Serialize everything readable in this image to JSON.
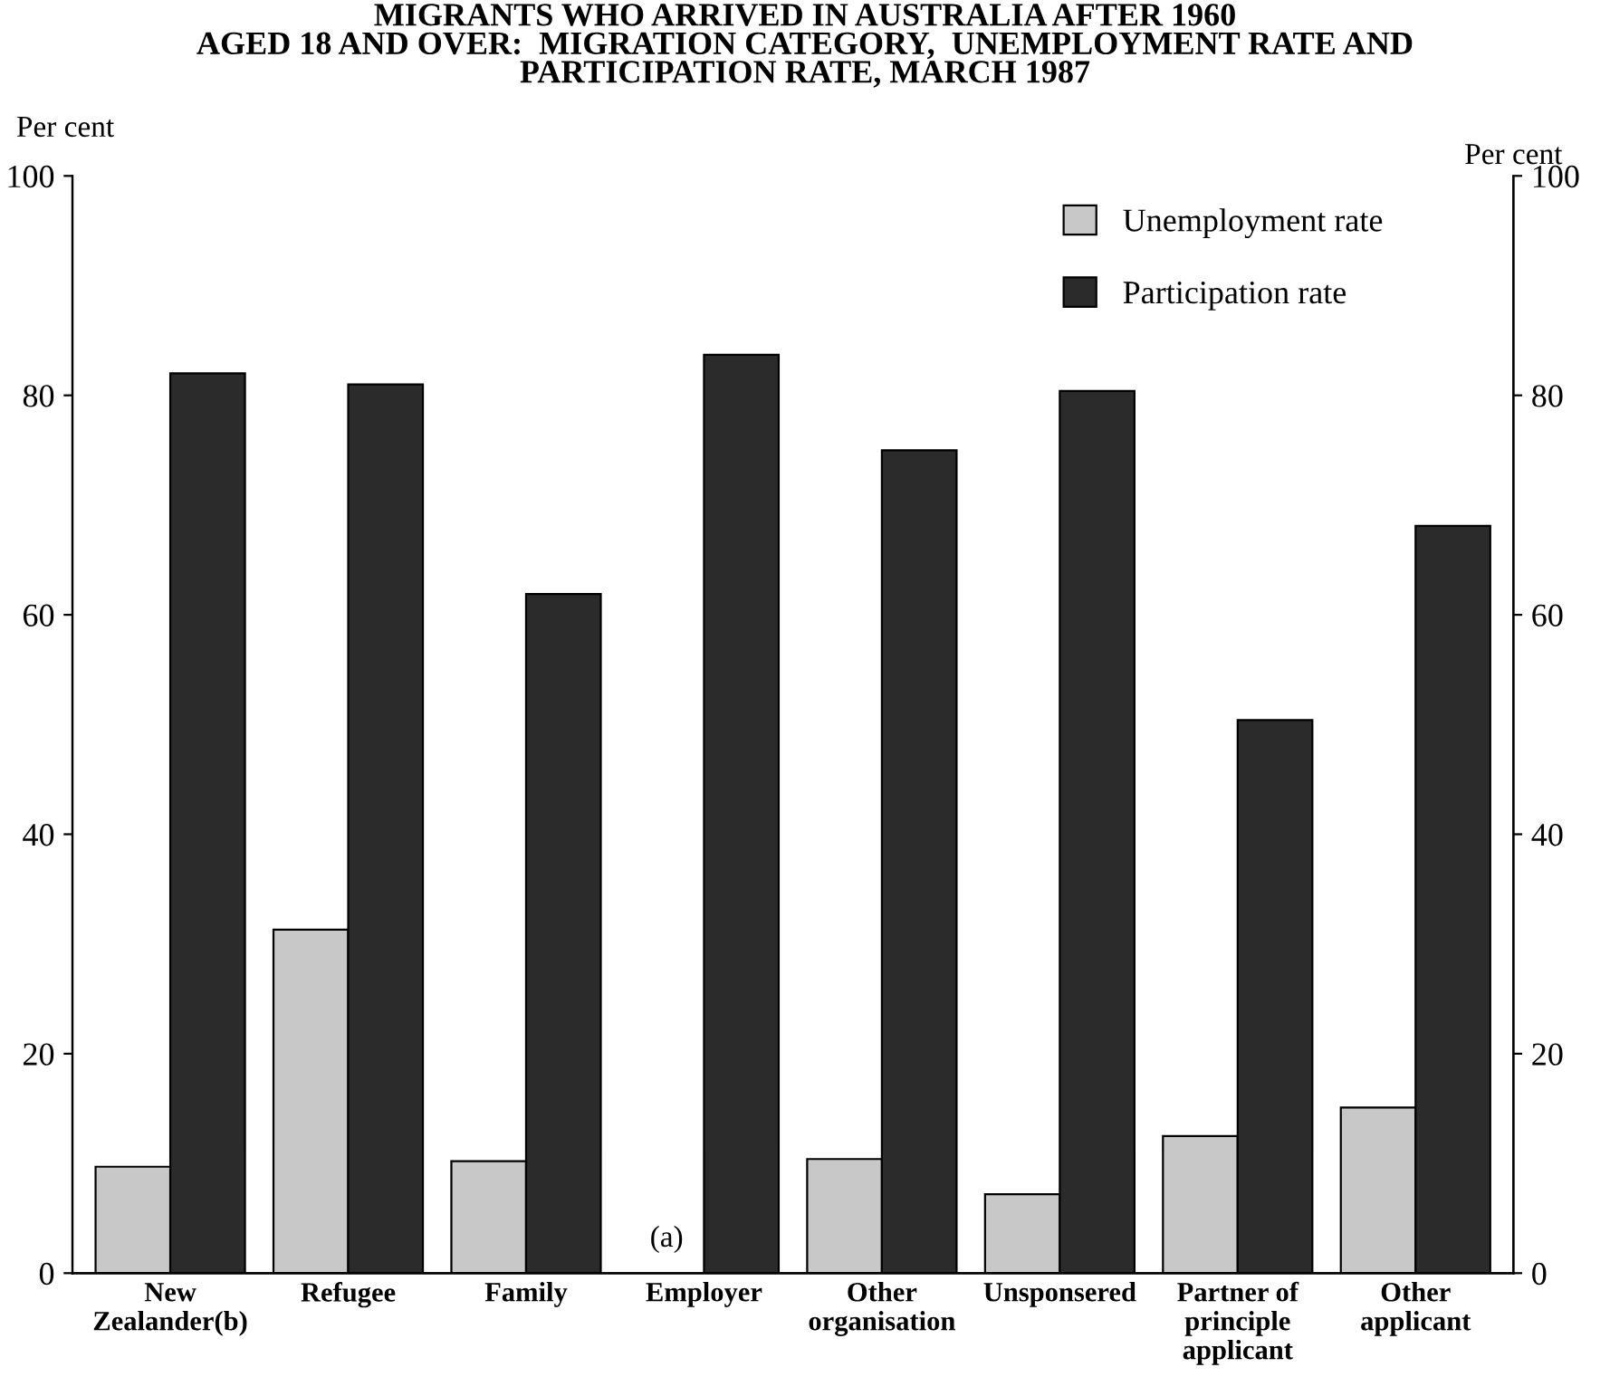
{
  "chart_data": {
    "type": "bar",
    "title": "MIGRANTS WHO ARRIVED IN AUSTRALIA AFTER 1960\nAGED 18 AND OVER:  MIGRATION CATEGORY,  UNEMPLOYMENT RATE AND\nPARTICIPATION RATE, MARCH 1987",
    "ylabel": "Per cent",
    "y2label": "Per cent",
    "categories": [
      "New\nZealander(b)",
      "Refugee",
      "Family",
      "Employer",
      "Other\norganisation",
      "Unsponsered",
      "Partner of\nprinciple\napplicant",
      "Other\napplicant"
    ],
    "series": [
      {
        "name": "Unemployment rate",
        "color": "#c8c8c8",
        "values": [
          9.7,
          31.3,
          10.2,
          null,
          10.4,
          7.2,
          12.5,
          15.1
        ]
      },
      {
        "name": "Participation rate",
        "color": "#2b2b2b",
        "values": [
          82.0,
          81.0,
          61.9,
          83.7,
          75.0,
          80.4,
          50.4,
          68.1
        ]
      }
    ],
    "ylim": [
      0,
      100
    ],
    "yticks": [
      0,
      20,
      40,
      60,
      80,
      100
    ],
    "y2lim": [
      0,
      100
    ],
    "y2ticks": [
      0,
      20,
      40,
      60,
      80,
      100
    ],
    "annotations": [
      {
        "text": "(a)",
        "x": "Employer",
        "y": 0
      }
    ],
    "legend": "top right",
    "grid": false
  }
}
